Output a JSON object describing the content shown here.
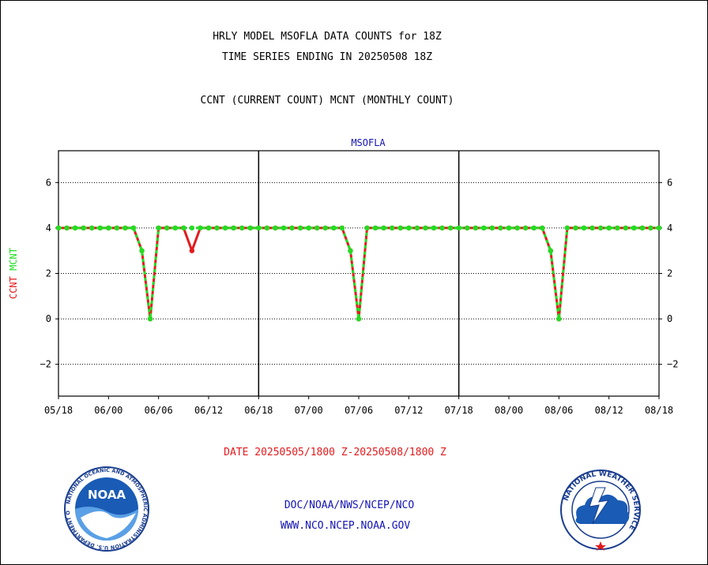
{
  "header": {
    "title_line1": "HRLY MODEL MSOFLA DATA COUNTS for 18Z",
    "title_line2": "TIME SERIES ENDING IN 20250508 18Z",
    "title_line3": "CCNT (CURRENT COUNT) MCNT (MONTHLY COUNT)"
  },
  "footer": {
    "date_range": "DATE 20250505/1800 Z-20250508/1800 Z",
    "org_path": "DOC/NOAA/NWS/NCEP/NCO",
    "website": "WWW.NCO.NCEP.NOAA.GOV"
  },
  "logos": {
    "noaa_text": "NOAA",
    "noaa_ring_text": "NATIONAL OCEANIC AND ATMOSPHERIC ADMINISTRATION U.S. DEPARTMENT OF COMMERCE",
    "nws_ring_text": "NATIONAL WEATHER SERVICE"
  },
  "colors": {
    "ccnt": "#e31a1c",
    "mcnt": "#22dd22",
    "panel_title": "#1414b4",
    "footer_text": "#1414b4"
  },
  "chart_data": {
    "type": "line",
    "panel_title": "MSOFLA",
    "ylabel_parts": [
      "CCNT",
      "MCNT"
    ],
    "ylim": [
      -3.4,
      7.4
    ],
    "y_ticks": [
      -2,
      0,
      2,
      4,
      6
    ],
    "y_tick_labels": [
      "−2",
      "0",
      "2",
      "4",
      "6"
    ],
    "grid": true,
    "x_tick_labels": [
      "05/18",
      "06/00",
      "06/06",
      "06/12",
      "06/18",
      "07/00",
      "07/06",
      "07/12",
      "07/18",
      "08/00",
      "08/06",
      "08/12",
      "08/18"
    ],
    "x_hours": [
      0,
      6,
      12,
      18,
      24,
      30,
      36,
      42,
      48,
      54,
      60,
      66,
      72
    ],
    "panel_dividers_hours": [
      24,
      48
    ],
    "series": [
      {
        "name": "CCNT",
        "x_hours": [
          0,
          1,
          2,
          3,
          4,
          5,
          6,
          7,
          8,
          9,
          10,
          11,
          12,
          13,
          14,
          15,
          16,
          17,
          18,
          19,
          20,
          21,
          22,
          23,
          24,
          25,
          26,
          27,
          28,
          29,
          30,
          31,
          32,
          33,
          34,
          35,
          36,
          37,
          38,
          39,
          40,
          41,
          42,
          43,
          44,
          45,
          46,
          47,
          48,
          49,
          50,
          51,
          52,
          53,
          54,
          55,
          56,
          57,
          58,
          59,
          60,
          61,
          62,
          63,
          64,
          65,
          66,
          67,
          68,
          69,
          70,
          71,
          72
        ],
        "values": [
          4,
          4,
          4,
          4,
          4,
          4,
          4,
          4,
          4,
          4,
          3,
          0,
          4,
          4,
          4,
          4,
          3,
          4,
          4,
          4,
          4,
          4,
          4,
          4,
          4,
          4,
          4,
          4,
          4,
          4,
          4,
          4,
          4,
          4,
          4,
          3,
          0,
          4,
          4,
          4,
          4,
          4,
          4,
          4,
          4,
          4,
          4,
          4,
          4,
          4,
          4,
          4,
          4,
          4,
          4,
          4,
          4,
          4,
          4,
          3,
          0,
          4,
          4,
          4,
          4,
          4,
          4,
          4,
          4,
          4,
          4,
          4,
          4
        ]
      },
      {
        "name": "MCNT",
        "x_hours": [
          0,
          1,
          2,
          3,
          4,
          5,
          6,
          7,
          8,
          9,
          10,
          11,
          12,
          13,
          14,
          15,
          16,
          17,
          18,
          19,
          20,
          21,
          22,
          23,
          24,
          25,
          26,
          27,
          28,
          29,
          30,
          31,
          32,
          33,
          34,
          35,
          36,
          37,
          38,
          39,
          40,
          41,
          42,
          43,
          44,
          45,
          46,
          47,
          48,
          49,
          50,
          51,
          52,
          53,
          54,
          55,
          56,
          57,
          58,
          59,
          60,
          61,
          62,
          63,
          64,
          65,
          66,
          67,
          68,
          69,
          70,
          71,
          72
        ],
        "values": [
          4,
          4,
          4,
          4,
          4,
          4,
          4,
          4,
          4,
          4,
          3,
          0,
          4,
          4,
          4,
          4,
          4,
          4,
          4,
          4,
          4,
          4,
          4,
          4,
          4,
          4,
          4,
          4,
          4,
          4,
          4,
          4,
          4,
          4,
          4,
          3,
          0,
          4,
          4,
          4,
          4,
          4,
          4,
          4,
          4,
          4,
          4,
          4,
          4,
          4,
          4,
          4,
          4,
          4,
          4,
          4,
          4,
          4,
          4,
          3,
          0,
          4,
          4,
          4,
          4,
          4,
          4,
          4,
          4,
          4,
          4,
          4,
          4
        ]
      }
    ]
  }
}
